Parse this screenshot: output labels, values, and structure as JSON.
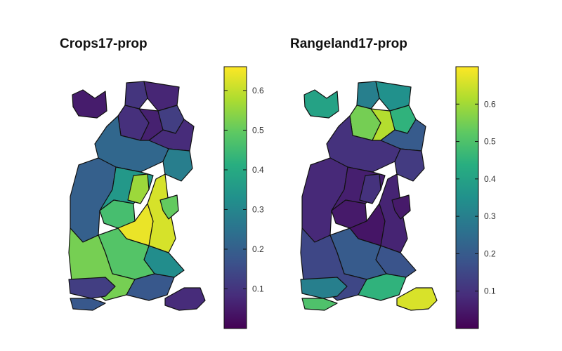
{
  "maps": [
    {
      "title": "Crops17-prop",
      "colorbar": {
        "ticks": [
          "0.1",
          "0.2",
          "0.3",
          "0.4",
          "0.5",
          "0.6"
        ],
        "range": [
          0.0,
          0.66
        ]
      },
      "regions": [
        {
          "id": "nw-island",
          "value": 0.05
        },
        {
          "id": "n1",
          "value": 0.1
        },
        {
          "id": "n2",
          "value": 0.07
        },
        {
          "id": "n3",
          "value": 0.09
        },
        {
          "id": "n4",
          "value": 0.06
        },
        {
          "id": "n5",
          "value": 0.12
        },
        {
          "id": "n6",
          "value": 0.08
        },
        {
          "id": "mid-band",
          "value": 0.22
        },
        {
          "id": "mid-right",
          "value": 0.28
        },
        {
          "id": "w-large",
          "value": 0.2
        },
        {
          "id": "c-teal",
          "value": 0.35
        },
        {
          "id": "c-lime",
          "value": 0.56
        },
        {
          "id": "c-green",
          "value": 0.46
        },
        {
          "id": "c-yellow1",
          "value": 0.64
        },
        {
          "id": "c-yellow2",
          "value": 0.62
        },
        {
          "id": "e-green",
          "value": 0.5
        },
        {
          "id": "s-teal",
          "value": 0.32
        },
        {
          "id": "s-green",
          "value": 0.48
        },
        {
          "id": "sw-lime",
          "value": 0.52
        },
        {
          "id": "s-blue",
          "value": 0.18
        },
        {
          "id": "sw-isl1",
          "value": 0.12
        },
        {
          "id": "sw-isl2",
          "value": 0.18
        },
        {
          "id": "se-isl",
          "value": 0.08
        }
      ]
    },
    {
      "title": "Rangeland17-prop",
      "colorbar": {
        "ticks": [
          "0.1",
          "0.2",
          "0.3",
          "0.4",
          "0.5",
          "0.6"
        ],
        "range": [
          0.0,
          0.7
        ]
      },
      "regions": [
        {
          "id": "nw-island",
          "value": 0.4
        },
        {
          "id": "n1",
          "value": 0.3
        },
        {
          "id": "n2",
          "value": 0.35
        },
        {
          "id": "n3",
          "value": 0.55
        },
        {
          "id": "n4",
          "value": 0.62
        },
        {
          "id": "n5",
          "value": 0.45
        },
        {
          "id": "n6",
          "value": 0.2
        },
        {
          "id": "mid-band",
          "value": 0.1
        },
        {
          "id": "mid-right",
          "value": 0.12
        },
        {
          "id": "w-large",
          "value": 0.08
        },
        {
          "id": "c-teal",
          "value": 0.06
        },
        {
          "id": "c-lime",
          "value": 0.1
        },
        {
          "id": "c-green",
          "value": 0.05
        },
        {
          "id": "c-yellow1",
          "value": 0.04
        },
        {
          "id": "c-yellow2",
          "value": 0.07
        },
        {
          "id": "e-green",
          "value": 0.05
        },
        {
          "id": "s-teal",
          "value": 0.18
        },
        {
          "id": "s-green",
          "value": 0.2
        },
        {
          "id": "sw-lime",
          "value": 0.15
        },
        {
          "id": "s-blue",
          "value": 0.45
        },
        {
          "id": "sw-isl1",
          "value": 0.3
        },
        {
          "id": "sw-isl2",
          "value": 0.5
        },
        {
          "id": "se-isl",
          "value": 0.66
        }
      ]
    }
  ]
}
